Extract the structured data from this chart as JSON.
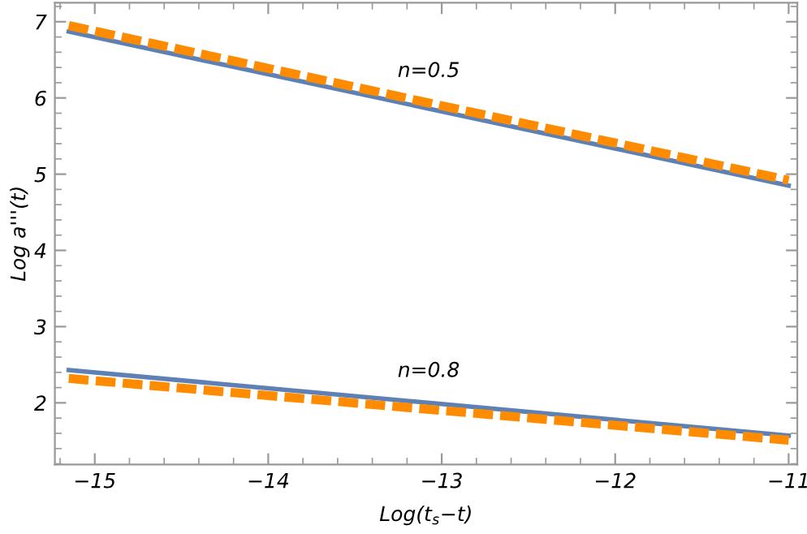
{
  "chart_data": {
    "type": "line",
    "xlabel": "Log(t$_{s}$−t)",
    "ylabel": "Log a'''(t)",
    "xlim": [
      -15.23,
      -10.95
    ],
    "ylim": [
      1.19,
      7.25
    ],
    "xticks": [
      -15,
      -14,
      -13,
      -12,
      -11
    ],
    "yticks": [
      2,
      3,
      4,
      5,
      6,
      7
    ],
    "x": [
      -15.15,
      -11.0
    ],
    "grid": false,
    "legend": false,
    "marker": "none",
    "series": [
      {
        "color": "#5e81b5",
        "values": [
          6.87,
          4.85
        ],
        "line_style": "solid"
      },
      {
        "color": "#ff8c00",
        "values": [
          6.95,
          4.92
        ],
        "line_style": "dashed"
      },
      {
        "color": "#5e81b5",
        "values": [
          2.43,
          1.57
        ],
        "line_style": "solid"
      },
      {
        "color": "#ff8c00",
        "values": [
          2.32,
          1.51
        ],
        "line_style": "dashed"
      }
    ],
    "annotations": [
      "n=0.5",
      "n=0.8"
    ]
  }
}
